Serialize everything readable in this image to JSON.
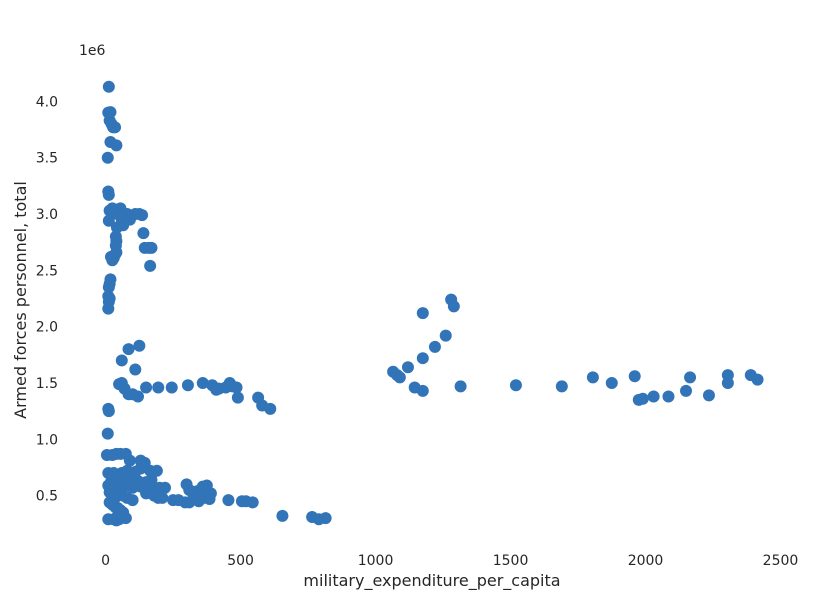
{
  "chart_data": {
    "type": "scatter",
    "title": "",
    "xlabel": "military_expenditure_per_capita",
    "ylabel": "Armed forces personnel, total",
    "y_offset_label": "1e6",
    "xlim": [
      -80,
      2550
    ],
    "ylim": [
      150000,
      4350000
    ],
    "x_ticks": [
      0,
      500,
      1000,
      1500,
      2000,
      2500
    ],
    "x_tick_labels": [
      "0",
      "500",
      "1000",
      "1500",
      "2000",
      "2500"
    ],
    "y_ticks": [
      500000,
      1000000,
      1500000,
      2000000,
      2500000,
      3000000,
      3500000,
      4000000
    ],
    "y_tick_labels": [
      "0.5",
      "1.0",
      "1.5",
      "2.0",
      "2.5",
      "3.0",
      "3.5",
      "4.0"
    ],
    "grid": false,
    "legend": "none",
    "marker_color": "#3274b8",
    "series": [
      {
        "points": [
          [
            12,
            4130000
          ],
          [
            10,
            3900000
          ],
          [
            18,
            3905000
          ],
          [
            15,
            3830000
          ],
          [
            22,
            3800000
          ],
          [
            28,
            3770000
          ],
          [
            35,
            3770000
          ],
          [
            18,
            3640000
          ],
          [
            40,
            3610000
          ],
          [
            8,
            3500000
          ],
          [
            10,
            3200000
          ],
          [
            12,
            3170000
          ],
          [
            25,
            3050000
          ],
          [
            15,
            3030000
          ],
          [
            35,
            3040000
          ],
          [
            55,
            3050000
          ],
          [
            45,
            3000000
          ],
          [
            80,
            3000000
          ],
          [
            110,
            3000000
          ],
          [
            125,
            3000000
          ],
          [
            135,
            2990000
          ],
          [
            12,
            2940000
          ],
          [
            60,
            2950000
          ],
          [
            90,
            2950000
          ],
          [
            65,
            2900000
          ],
          [
            42,
            2880000
          ],
          [
            140,
            2830000
          ],
          [
            38,
            2800000
          ],
          [
            40,
            2760000
          ],
          [
            38,
            2720000
          ],
          [
            145,
            2700000
          ],
          [
            160,
            2700000
          ],
          [
            170,
            2700000
          ],
          [
            40,
            2660000
          ],
          [
            35,
            2640000
          ],
          [
            20,
            2620000
          ],
          [
            30,
            2610000
          ],
          [
            25,
            2590000
          ],
          [
            165,
            2540000
          ],
          [
            18,
            2420000
          ],
          [
            15,
            2380000
          ],
          [
            12,
            2350000
          ],
          [
            10,
            2270000
          ],
          [
            15,
            2250000
          ],
          [
            12,
            2220000
          ],
          [
            10,
            2160000
          ],
          [
            1280,
            2240000
          ],
          [
            1290,
            2180000
          ],
          [
            1175,
            2120000
          ],
          [
            1260,
            1920000
          ],
          [
            1220,
            1820000
          ],
          [
            1175,
            1720000
          ],
          [
            1120,
            1640000
          ],
          [
            1065,
            1600000
          ],
          [
            1080,
            1570000
          ],
          [
            1090,
            1550000
          ],
          [
            1145,
            1460000
          ],
          [
            1175,
            1430000
          ],
          [
            1315,
            1470000
          ],
          [
            1520,
            1480000
          ],
          [
            1690,
            1470000
          ],
          [
            1805,
            1550000
          ],
          [
            1875,
            1500000
          ],
          [
            1960,
            1560000
          ],
          [
            1975,
            1350000
          ],
          [
            1990,
            1360000
          ],
          [
            2030,
            1380000
          ],
          [
            2085,
            1380000
          ],
          [
            2150,
            1430000
          ],
          [
            2165,
            1550000
          ],
          [
            2235,
            1390000
          ],
          [
            2305,
            1570000
          ],
          [
            2305,
            1500000
          ],
          [
            2390,
            1570000
          ],
          [
            2415,
            1530000
          ],
          [
            125,
            1830000
          ],
          [
            85,
            1800000
          ],
          [
            60,
            1700000
          ],
          [
            110,
            1620000
          ],
          [
            50,
            1490000
          ],
          [
            60,
            1500000
          ],
          [
            70,
            1450000
          ],
          [
            85,
            1400000
          ],
          [
            100,
            1400000
          ],
          [
            120,
            1380000
          ],
          [
            150,
            1460000
          ],
          [
            195,
            1460000
          ],
          [
            245,
            1460000
          ],
          [
            305,
            1480000
          ],
          [
            360,
            1500000
          ],
          [
            395,
            1480000
          ],
          [
            410,
            1440000
          ],
          [
            420,
            1450000
          ],
          [
            445,
            1460000
          ],
          [
            460,
            1500000
          ],
          [
            470,
            1470000
          ],
          [
            485,
            1460000
          ],
          [
            490,
            1370000
          ],
          [
            565,
            1370000
          ],
          [
            580,
            1300000
          ],
          [
            610,
            1270000
          ],
          [
            10,
            1270000
          ],
          [
            12,
            1250000
          ],
          [
            8,
            1050000
          ],
          [
            5,
            860000
          ],
          [
            25,
            860000
          ],
          [
            40,
            870000
          ],
          [
            55,
            870000
          ],
          [
            75,
            870000
          ],
          [
            90,
            810000
          ],
          [
            130,
            810000
          ],
          [
            145,
            790000
          ],
          [
            10,
            700000
          ],
          [
            30,
            700000
          ],
          [
            60,
            700000
          ],
          [
            80,
            720000
          ],
          [
            110,
            710000
          ],
          [
            130,
            740000
          ],
          [
            165,
            720000
          ],
          [
            190,
            720000
          ],
          [
            20,
            620000
          ],
          [
            40,
            640000
          ],
          [
            60,
            650000
          ],
          [
            90,
            630000
          ],
          [
            120,
            630000
          ],
          [
            150,
            620000
          ],
          [
            170,
            640000
          ],
          [
            10,
            590000
          ],
          [
            30,
            580000
          ],
          [
            50,
            590000
          ],
          [
            80,
            590000
          ],
          [
            100,
            570000
          ],
          [
            130,
            580000
          ],
          [
            155,
            560000
          ],
          [
            175,
            570000
          ],
          [
            200,
            570000
          ],
          [
            220,
            570000
          ],
          [
            300,
            600000
          ],
          [
            310,
            550000
          ],
          [
            340,
            540000
          ],
          [
            360,
            580000
          ],
          [
            375,
            590000
          ],
          [
            390,
            520000
          ],
          [
            15,
            530000
          ],
          [
            25,
            500000
          ],
          [
            35,
            480000
          ],
          [
            50,
            510000
          ],
          [
            65,
            500000
          ],
          [
            80,
            480000
          ],
          [
            100,
            460000
          ],
          [
            150,
            520000
          ],
          [
            180,
            500000
          ],
          [
            195,
            480000
          ],
          [
            210,
            480000
          ],
          [
            250,
            460000
          ],
          [
            270,
            460000
          ],
          [
            295,
            440000
          ],
          [
            310,
            440000
          ],
          [
            325,
            470000
          ],
          [
            345,
            450000
          ],
          [
            365,
            480000
          ],
          [
            385,
            470000
          ],
          [
            455,
            460000
          ],
          [
            505,
            450000
          ],
          [
            520,
            450000
          ],
          [
            545,
            440000
          ],
          [
            15,
            440000
          ],
          [
            25,
            420000
          ],
          [
            35,
            400000
          ],
          [
            45,
            390000
          ],
          [
            55,
            370000
          ],
          [
            65,
            350000
          ],
          [
            45,
            320000
          ],
          [
            60,
            310000
          ],
          [
            75,
            300000
          ],
          [
            10,
            290000
          ],
          [
            30,
            290000
          ],
          [
            40,
            280000
          ],
          [
            50,
            290000
          ],
          [
            655,
            320000
          ],
          [
            765,
            310000
          ],
          [
            790,
            290000
          ],
          [
            815,
            300000
          ]
        ]
      }
    ]
  }
}
